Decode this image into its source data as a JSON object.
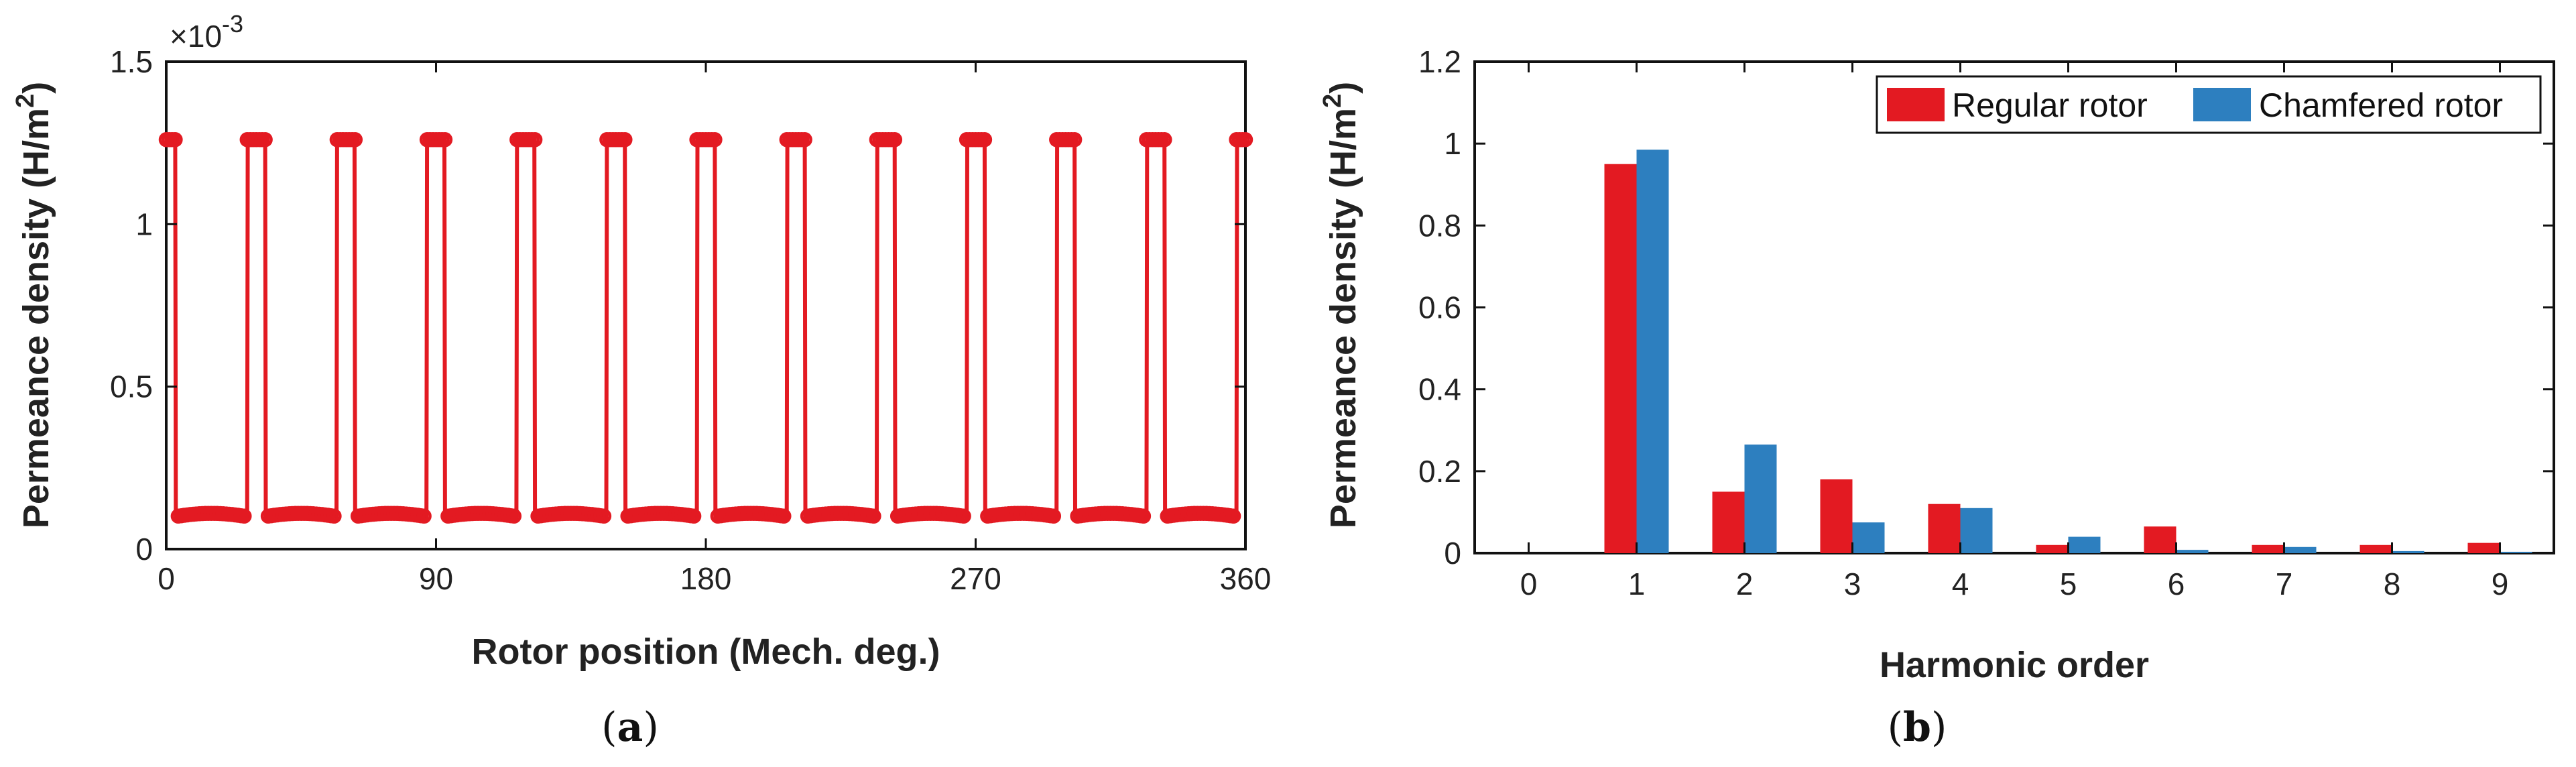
{
  "chart_data": [
    {
      "type": "line",
      "panel": "a",
      "caption_letter": "a",
      "xlabel": "Rotor position (Mech. deg.)",
      "ylabel": "Permeance density (H/m",
      "ylabel_sup": "2",
      "ylabel_close": ")",
      "multiplier_base": "×10",
      "multiplier_exp": "-3",
      "xlim": [
        0,
        360
      ],
      "ylim": [
        0,
        1.5
      ],
      "xticks": [
        0,
        90,
        180,
        270,
        360
      ],
      "yticks": [
        0,
        0.5,
        1,
        1.5
      ],
      "ytick_labels": [
        "0",
        "0.5",
        "1",
        "1.5"
      ],
      "color": "#e31a22",
      "series": [
        {
          "name": "Permeance density",
          "slot_pitch_deg": 30,
          "max_value": 1.26,
          "min_value": 0.11,
          "min_position_deg": 15,
          "flat_top_width_deg": 6,
          "marker": "circle"
        }
      ]
    },
    {
      "type": "bar",
      "panel": "b",
      "caption_letter": "b",
      "xlabel": "Harmonic order",
      "ylabel": "Permeance density (H/m",
      "ylabel_sup": "2",
      "ylabel_close": ")",
      "categories": [
        "0",
        "1",
        "2",
        "3",
        "4",
        "5",
        "6",
        "7",
        "8",
        "9"
      ],
      "ylim": [
        0,
        1.2
      ],
      "yticks": [
        0,
        0.2,
        0.4,
        0.6,
        0.8,
        1,
        1.2
      ],
      "ytick_labels": [
        "0",
        "0.2",
        "0.4",
        "0.6",
        "0.8",
        "1",
        "1.2"
      ],
      "legend_position": "top-right",
      "series": [
        {
          "name": "Regular rotor",
          "color": "#e31a22",
          "values": [
            0,
            0.95,
            0.15,
            0.18,
            0.12,
            0.02,
            0.065,
            0.02,
            0.02,
            0.025
          ]
        },
        {
          "name": "Chamfered rotor",
          "color": "#2d7fbf",
          "values": [
            0,
            0.985,
            0.265,
            0.075,
            0.11,
            0.04,
            0.008,
            0.015,
            0.005,
            0.003
          ]
        }
      ]
    }
  ]
}
